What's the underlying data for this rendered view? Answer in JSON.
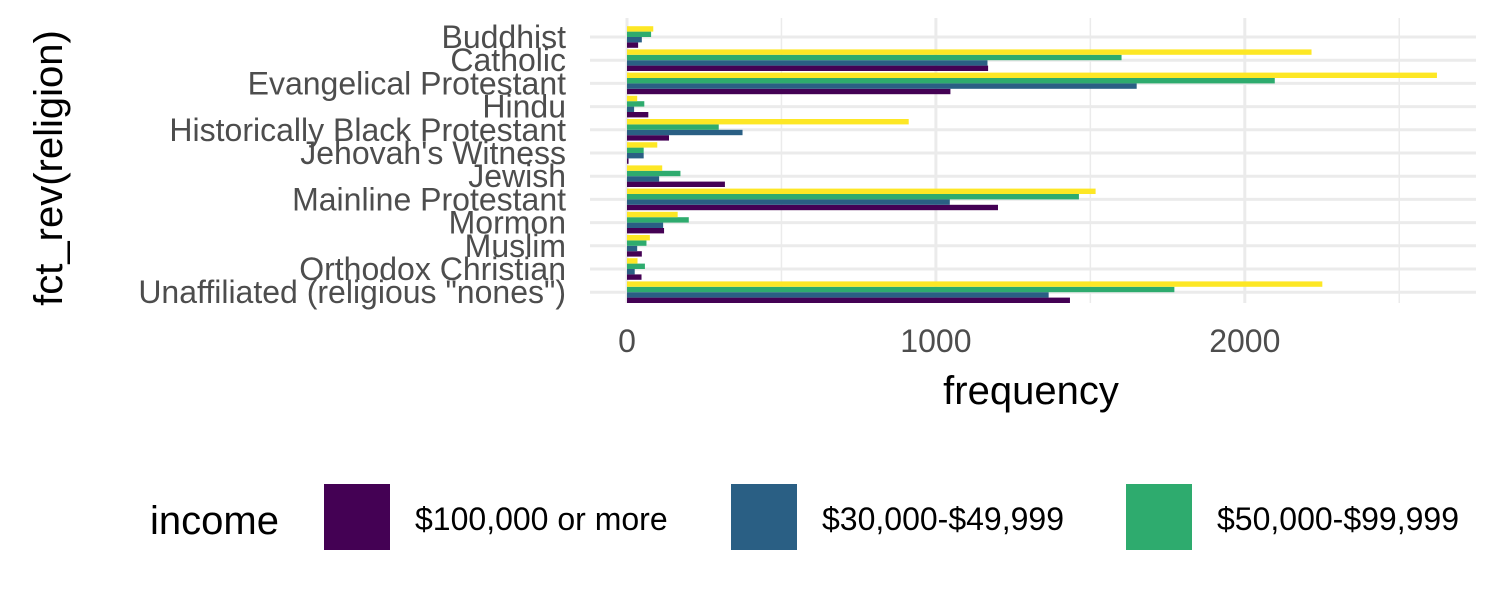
{
  "chart_data": {
    "type": "bar",
    "orientation": "horizontal",
    "categories": [
      "Buddhist",
      "Catholic",
      "Evangelical Protestant",
      "Hindu",
      "Historically Black Protestant",
      "Jehovah's Witness",
      "Jewish",
      "Mainline Protestant",
      "Mormon",
      "Muslim",
      "Orthodox Christian",
      "Unaffiliated (religious \"nones\")"
    ],
    "series": [
      {
        "name": "$100,000 or more",
        "color": "#440154",
        "values": [
          36,
          1169,
          1047,
          69,
          136,
          5,
          317,
          1201,
          120,
          48,
          47,
          1434
        ]
      },
      {
        "name": "$30,000-$49,999",
        "color": "#2A5F84",
        "values": [
          48,
          1167,
          1650,
          23,
          374,
          54,
          104,
          1045,
          117,
          33,
          25,
          1365
        ]
      },
      {
        "name": "$50,000-$99,999",
        "color": "#2EAB6E",
        "values": [
          78,
          1601,
          2097,
          56,
          297,
          54,
          173,
          1463,
          200,
          63,
          58,
          1772
        ]
      },
      {
        "name": "",
        "color": "#FDE725",
        "values": [
          85,
          2216,
          2622,
          33,
          912,
          98,
          114,
          1517,
          164,
          74,
          34,
          2251
        ]
      }
    ],
    "xlim": [
      0,
      2750
    ],
    "x_ticks": [
      0,
      1000,
      2000
    ],
    "xlabel": "frequency",
    "ylabel": "fct_rev(religion)",
    "legend": {
      "title": "income",
      "position": "bottom"
    },
    "grid": true
  }
}
